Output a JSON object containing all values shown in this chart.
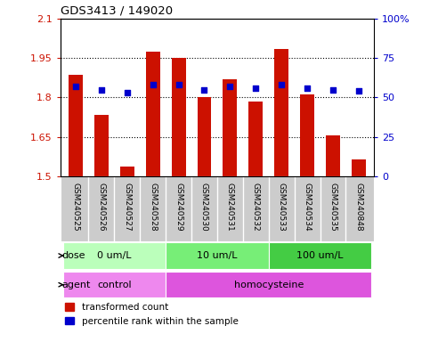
{
  "title": "GDS3413 / 149020",
  "samples": [
    "GSM240525",
    "GSM240526",
    "GSM240527",
    "GSM240528",
    "GSM240529",
    "GSM240530",
    "GSM240531",
    "GSM240532",
    "GSM240533",
    "GSM240534",
    "GSM240535",
    "GSM240848"
  ],
  "transformed_count": [
    1.885,
    1.735,
    1.535,
    1.975,
    1.95,
    1.8,
    1.87,
    1.785,
    1.985,
    1.81,
    1.655,
    1.565
  ],
  "percentile_rank": [
    57,
    55,
    53,
    58,
    58,
    55,
    57,
    56,
    58,
    56,
    55,
    54
  ],
  "ylim_left": [
    1.5,
    2.1
  ],
  "ylim_right": [
    0,
    100
  ],
  "yticks_left": [
    1.5,
    1.65,
    1.8,
    1.95,
    2.1
  ],
  "yticks_right": [
    0,
    25,
    50,
    75,
    100
  ],
  "ytick_labels_left": [
    "1.5",
    "1.65",
    "1.8",
    "1.95",
    "2.1"
  ],
  "ytick_labels_right": [
    "0",
    "25",
    "50",
    "75",
    "100%"
  ],
  "bar_color": "#cc1100",
  "dot_color": "#0000cc",
  "dose_groups": [
    {
      "label": "0 um/L",
      "start": 0,
      "end": 4,
      "color": "#bbffbb"
    },
    {
      "label": "10 um/L",
      "start": 4,
      "end": 8,
      "color": "#77ee77"
    },
    {
      "label": "100 um/L",
      "start": 8,
      "end": 12,
      "color": "#44cc44"
    }
  ],
  "agent_groups": [
    {
      "label": "control",
      "start": 0,
      "end": 4,
      "color": "#ee88ee"
    },
    {
      "label": "homocysteine",
      "start": 4,
      "end": 12,
      "color": "#dd55dd"
    }
  ],
  "dose_label": "dose",
  "agent_label": "agent",
  "legend_items": [
    {
      "label": "transformed count",
      "color": "#cc1100"
    },
    {
      "label": "percentile rank within the sample",
      "color": "#0000cc"
    }
  ],
  "background_color": "#ffffff",
  "sample_bg_color": "#cccccc"
}
